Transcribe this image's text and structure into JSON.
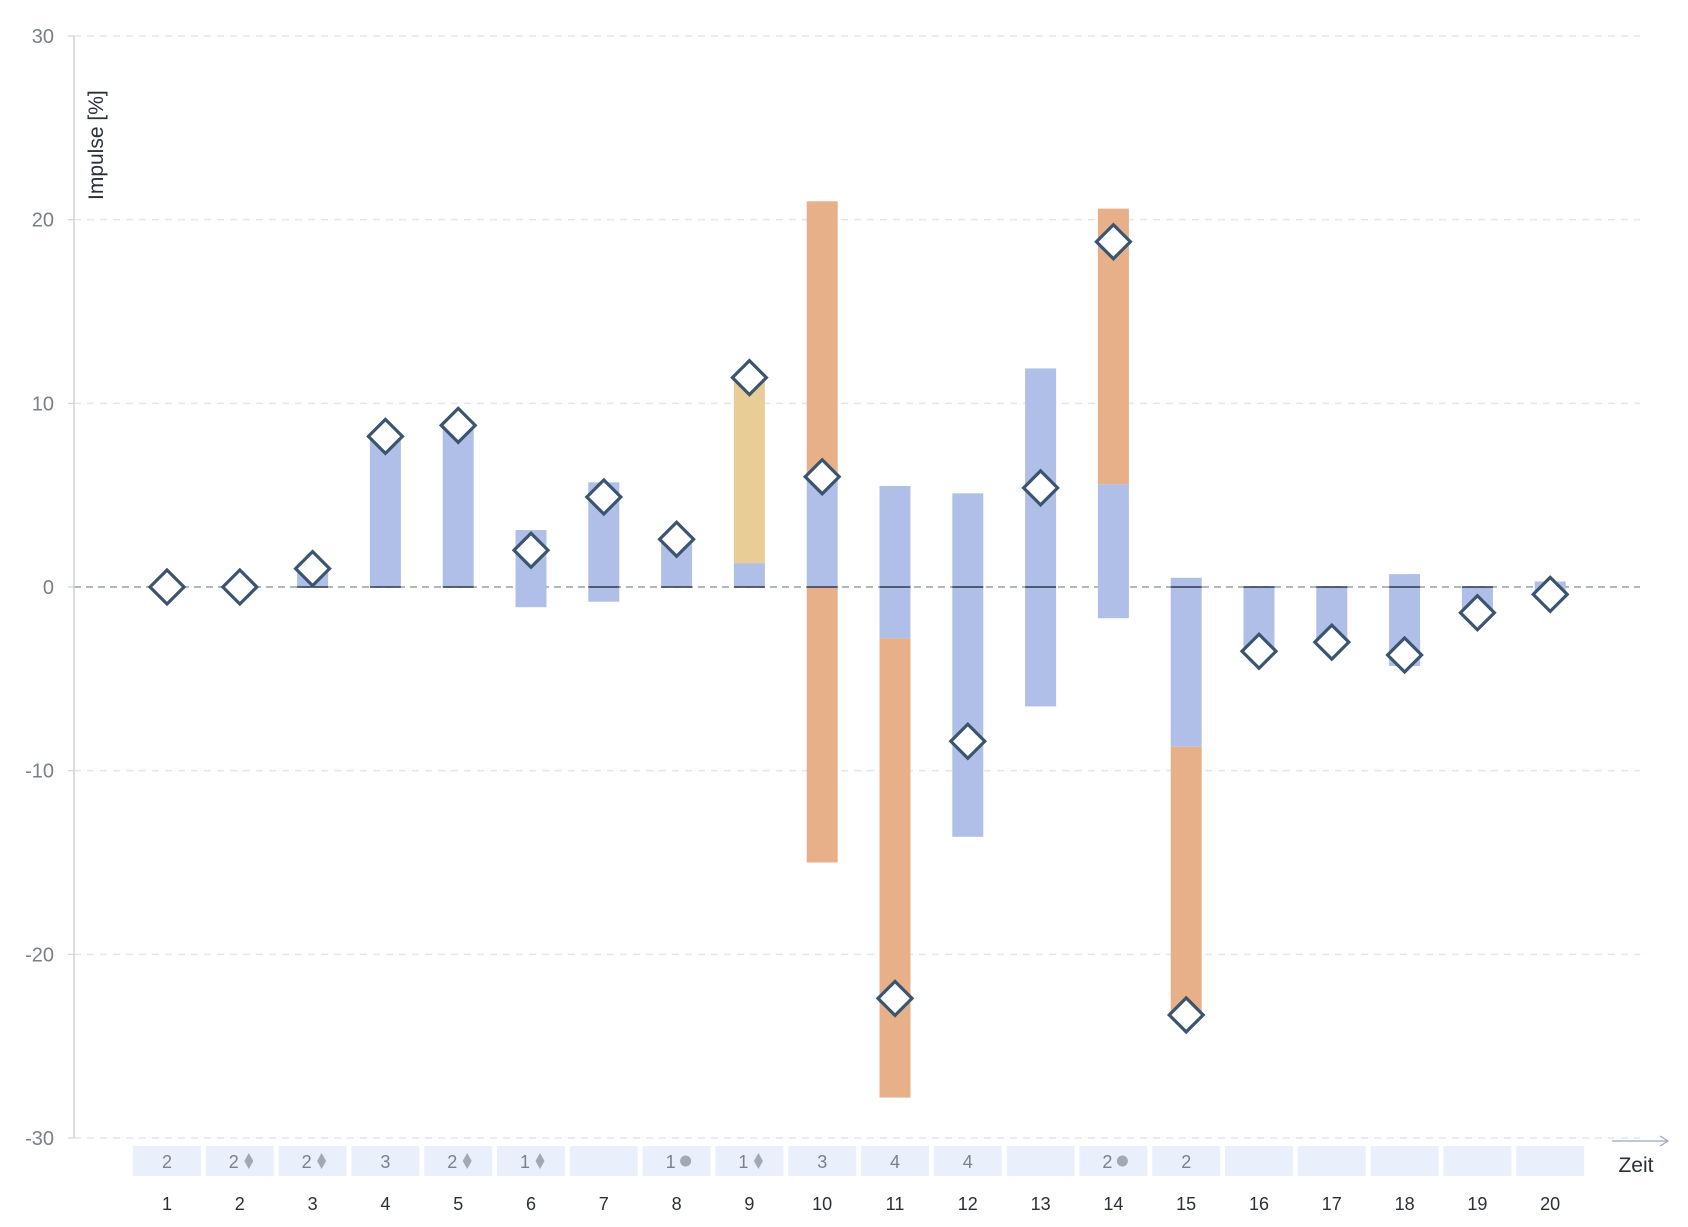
{
  "chart_data": {
    "type": "bar",
    "title": "",
    "ylabel": "Impulse [%]",
    "xlabel": "Zeit",
    "ylim": [
      -30,
      30
    ],
    "yticks": [
      30,
      20,
      10,
      0,
      -10,
      -20,
      -30
    ],
    "grid": true,
    "categories": [
      "1",
      "2",
      "3",
      "4",
      "5",
      "6",
      "7",
      "8",
      "9",
      "10",
      "11",
      "12",
      "13",
      "14",
      "15",
      "16",
      "17",
      "18",
      "19",
      "20"
    ],
    "colors": {
      "blue": "#b0bfe8",
      "orange": "#e8b088",
      "yellow": "#e9cd96",
      "marker_stroke": "#3b5470",
      "grid": "#e2e5f2",
      "strip": "#e9f0fb",
      "zero_line": "#9aa0a8"
    },
    "stacks": [
      [],
      [],
      [
        {
          "from": 0,
          "to": 1.0,
          "color": "blue"
        }
      ],
      [
        {
          "from": 0,
          "to": 8.1,
          "color": "blue"
        }
      ],
      [
        {
          "from": 0,
          "to": 8.8,
          "color": "blue"
        }
      ],
      [
        {
          "from": -1.1,
          "to": 3.1,
          "color": "blue"
        }
      ],
      [
        {
          "from": -0.8,
          "to": 5.7,
          "color": "blue"
        }
      ],
      [
        {
          "from": 0,
          "to": 2.6,
          "color": "blue"
        }
      ],
      [
        {
          "from": 0,
          "to": 1.3,
          "color": "blue"
        },
        {
          "from": 1.3,
          "to": 11.3,
          "color": "yellow"
        }
      ],
      [
        {
          "from": 0,
          "to": 6.0,
          "color": "blue"
        },
        {
          "from": 6.0,
          "to": 21.0,
          "color": "orange"
        },
        {
          "from": -15.0,
          "to": 0,
          "color": "orange"
        }
      ],
      [
        {
          "from": -2.8,
          "to": 5.5,
          "color": "blue"
        },
        {
          "from": -27.8,
          "to": -2.8,
          "color": "orange"
        }
      ],
      [
        {
          "from": -13.6,
          "to": 5.1,
          "color": "blue"
        }
      ],
      [
        {
          "from": -6.5,
          "to": 11.9,
          "color": "blue"
        }
      ],
      [
        {
          "from": -1.7,
          "to": 5.6,
          "color": "blue"
        },
        {
          "from": 5.6,
          "to": 20.6,
          "color": "orange"
        }
      ],
      [
        {
          "from": -8.7,
          "to": 0.5,
          "color": "blue"
        },
        {
          "from": -23.3,
          "to": -8.7,
          "color": "orange"
        }
      ],
      [
        {
          "from": -3.5,
          "to": 0,
          "color": "blue"
        }
      ],
      [
        {
          "from": -3.0,
          "to": 0,
          "color": "blue"
        }
      ],
      [
        {
          "from": -4.3,
          "to": 0.7,
          "color": "blue"
        }
      ],
      [
        {
          "from": -1.4,
          "to": 0,
          "color": "blue"
        }
      ],
      [
        {
          "from": -0.3,
          "to": 0.3,
          "color": "blue"
        }
      ]
    ],
    "markers": [
      0,
      0,
      1.0,
      8.2,
      8.8,
      2.0,
      4.9,
      2.6,
      11.4,
      6.0,
      -22.4,
      -8.4,
      5.4,
      18.8,
      -23.3,
      -3.5,
      -3.0,
      -3.7,
      -1.4,
      -0.4
    ],
    "zero_dash": [
      true,
      true,
      true,
      true,
      true,
      false,
      true,
      true,
      true,
      true,
      true,
      true,
      true,
      false,
      true,
      true,
      true,
      true,
      true,
      false
    ],
    "strip": [
      {
        "num": "2",
        "sym": ""
      },
      {
        "num": "2",
        "sym": "diamond"
      },
      {
        "num": "2",
        "sym": "diamond"
      },
      {
        "num": "3",
        "sym": ""
      },
      {
        "num": "2",
        "sym": "diamond"
      },
      {
        "num": "1",
        "sym": "diamond"
      },
      {
        "num": "",
        "sym": ""
      },
      {
        "num": "1",
        "sym": "circle"
      },
      {
        "num": "1",
        "sym": "diamond"
      },
      {
        "num": "3",
        "sym": ""
      },
      {
        "num": "4",
        "sym": ""
      },
      {
        "num": "4",
        "sym": ""
      },
      {
        "num": "",
        "sym": ""
      },
      {
        "num": "2",
        "sym": "circle"
      },
      {
        "num": "2",
        "sym": ""
      },
      {
        "num": "",
        "sym": ""
      },
      {
        "num": "",
        "sym": ""
      },
      {
        "num": "",
        "sym": ""
      },
      {
        "num": "",
        "sym": ""
      },
      {
        "num": "",
        "sym": ""
      }
    ]
  }
}
